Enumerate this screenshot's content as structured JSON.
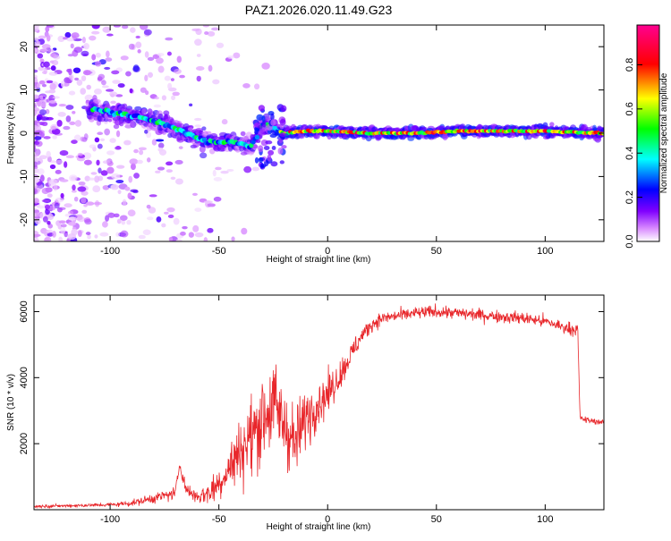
{
  "title": "PAZ1.2026.020.11.49.G23",
  "chart_data": [
    {
      "type": "heatmap",
      "xlabel": "Height of straight line (km)",
      "ylabel": "Frequency (Hz)",
      "xlim": [
        -135,
        127
      ],
      "ylim": [
        -25,
        25
      ],
      "xticks": [
        -100,
        -50,
        0,
        50,
        100
      ],
      "yticks": [
        20,
        10,
        0,
        -10,
        -20
      ],
      "colorbar": {
        "label": "Normalized spectral amplitude",
        "range": [
          0,
          0.98
        ],
        "ticks": [
          0.0,
          0.2,
          0.4,
          0.6,
          0.8
        ],
        "tick_labels": [
          "0.0",
          "0.2",
          "0.4",
          "0.6",
          "0.8"
        ],
        "colors": [
          "#ffffff",
          "#8000ff",
          "#0000ff",
          "#00ffff",
          "#00ff00",
          "#ffff00",
          "#ff0000",
          "#ff00aa"
        ]
      },
      "ridge": {
        "x": [
          -108,
          -95,
          -85,
          -75,
          -65,
          -55,
          -45,
          -35,
          -30,
          -25,
          -20,
          -10,
          0,
          20,
          40,
          60,
          80,
          100,
          127
        ],
        "y": [
          5.5,
          4.5,
          3.5,
          2,
          0,
          -2,
          -2,
          -3,
          2,
          1,
          0,
          0.5,
          0.5,
          0,
          0,
          0.5,
          0.5,
          0.5,
          0
        ]
      }
    },
    {
      "type": "line",
      "xlabel": "Height of straight line (km)",
      "ylabel": "SNR (10 * v/v)",
      "xlim": [
        -135,
        127
      ],
      "ylim": [
        0,
        6500
      ],
      "xticks": [
        -100,
        -50,
        0,
        50,
        100
      ],
      "yticks": [
        2000,
        4000,
        6000
      ],
      "series": [
        {
          "color": "#e8262a",
          "x": [
            -135,
            -120,
            -100,
            -90,
            -80,
            -70,
            -68,
            -65,
            -60,
            -55,
            -50,
            -45,
            -40,
            -35,
            -30,
            -25,
            -20,
            -15,
            -10,
            -5,
            0,
            5,
            10,
            15,
            20,
            25,
            30,
            35,
            40,
            50,
            60,
            70,
            80,
            90,
            100,
            110,
            115,
            116,
            117,
            120,
            127
          ],
          "y": [
            100,
            120,
            150,
            200,
            350,
            500,
            1400,
            600,
            400,
            500,
            800,
            1300,
            1800,
            2200,
            2800,
            3200,
            2600,
            2000,
            2800,
            3200,
            3500,
            4000,
            4600,
            5200,
            5600,
            5800,
            5850,
            5900,
            5950,
            6000,
            5950,
            5900,
            5850,
            5800,
            5700,
            5500,
            5450,
            2800,
            2750,
            2700,
            2650
          ],
          "noise": [
            60,
            60,
            80,
            120,
            200,
            250,
            300,
            250,
            300,
            500,
            700,
            900,
            1300,
            1600,
            1800,
            1800,
            1600,
            1400,
            1200,
            1000,
            800,
            600,
            500,
            400,
            300,
            250,
            250,
            250,
            250,
            250,
            250,
            250,
            250,
            250,
            250,
            250,
            250,
            120,
            120,
            120,
            120
          ]
        }
      ]
    }
  ]
}
